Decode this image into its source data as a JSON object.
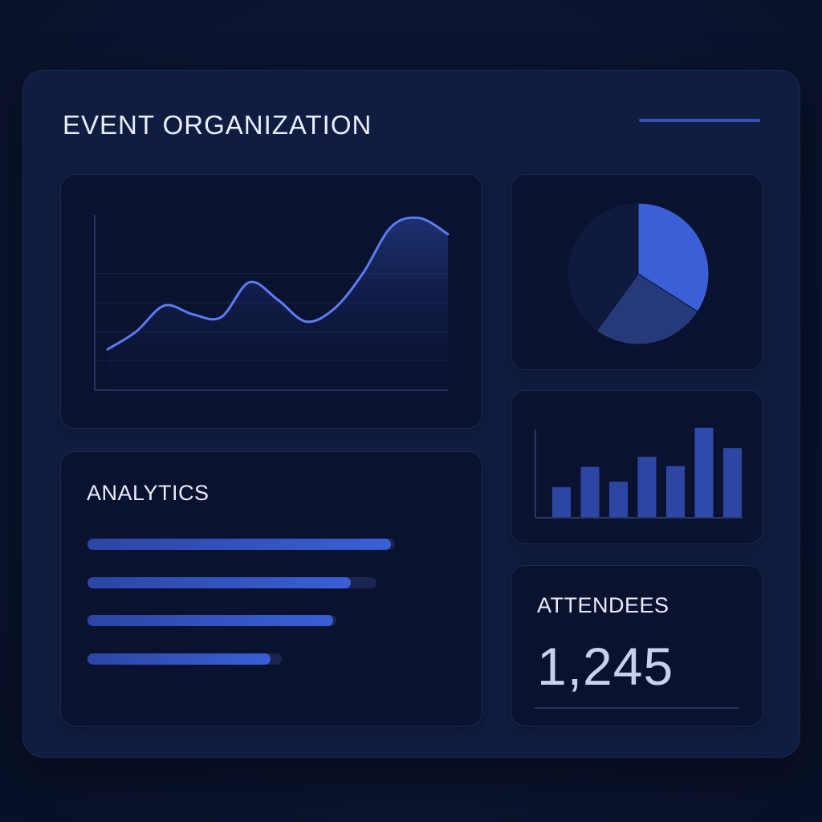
{
  "header": {
    "title": "EVENT ORGANIZATION"
  },
  "colors": {
    "background": "#0b1430",
    "card": "#111d40",
    "panel": "#0a1230",
    "accent": "#3a5fd6",
    "line": "#5b7cf2"
  },
  "analytics": {
    "title": "ANALYTICS",
    "bars": [
      {
        "track": 0.84,
        "fill": 0.83
      },
      {
        "track": 0.79,
        "fill": 0.72
      },
      {
        "track": 0.68,
        "fill": 0.67
      },
      {
        "track": 0.53,
        "fill": 0.5
      }
    ]
  },
  "attendees": {
    "title": "ATTENDEES",
    "value": "1,245"
  },
  "chart_data": [
    {
      "type": "area",
      "title": "",
      "xlabel": "",
      "ylabel": "",
      "grid": true,
      "legend": "none",
      "x": [
        0,
        1,
        2,
        3,
        4,
        5,
        6,
        7,
        8,
        9,
        10,
        11,
        12
      ],
      "values": [
        28,
        40,
        58,
        52,
        50,
        74,
        62,
        47,
        56,
        80,
        112,
        118,
        107
      ],
      "ylim": [
        0,
        120
      ]
    },
    {
      "type": "pie",
      "title": "",
      "legend": "none",
      "values": [
        34,
        26,
        40
      ]
    },
    {
      "type": "bar",
      "title": "",
      "xlabel": "",
      "ylabel": "",
      "legend": "none",
      "values": [
        38,
        64,
        45,
        77,
        65,
        114,
        88
      ],
      "ylim": [
        0,
        120
      ]
    }
  ]
}
